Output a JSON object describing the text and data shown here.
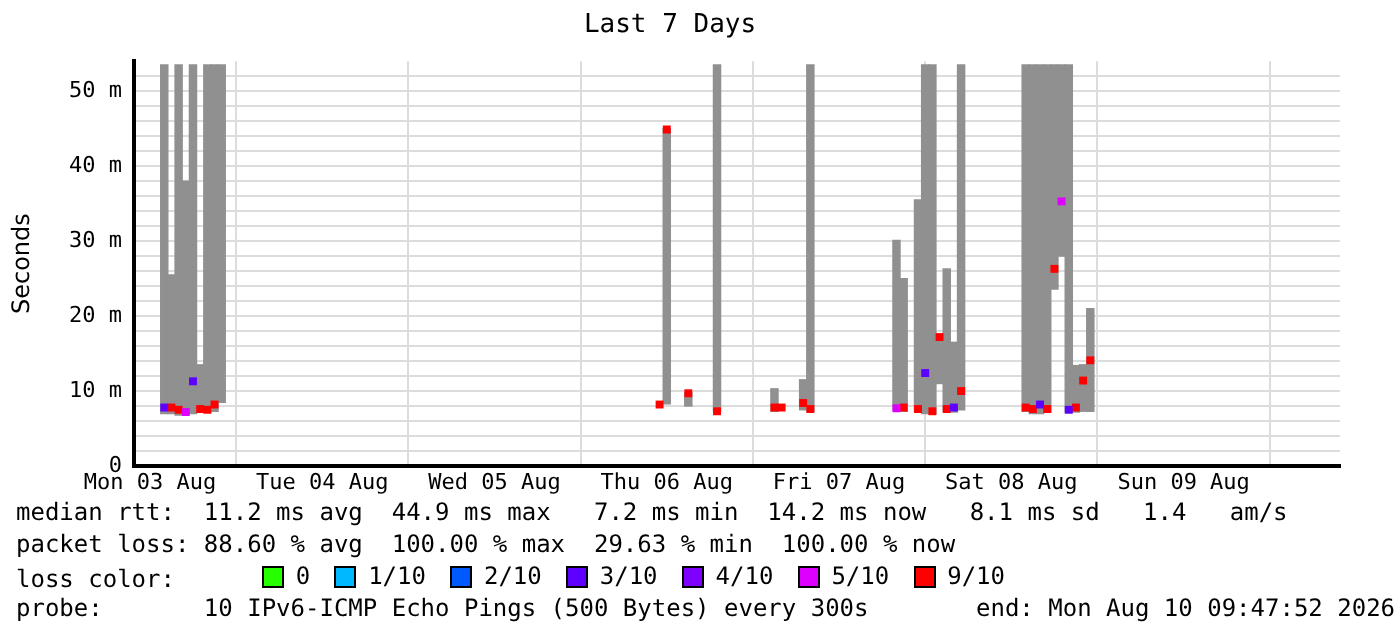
{
  "chart_data": {
    "type": "bar",
    "title": "Last 7 Days",
    "ylabel": "Seconds",
    "legend_title": "loss color:",
    "legend": "bottom",
    "marker": "square",
    "grid": true,
    "xlim": [
      "2026-08-03T09:47",
      "2026-08-10T09:47"
    ],
    "xticks": [
      {
        "value": "2026-08-03T12:00",
        "label": "Mon 03 Aug"
      },
      {
        "value": "2026-08-04T12:00",
        "label": "Tue 04 Aug"
      },
      {
        "value": "2026-08-05T12:00",
        "label": "Wed 05 Aug"
      },
      {
        "value": "2026-08-06T12:00",
        "label": "Thu 06 Aug"
      },
      {
        "value": "2026-08-07T12:00",
        "label": "Fri 07 Aug"
      },
      {
        "value": "2026-08-08T12:00",
        "label": "Sat 08 Aug"
      },
      {
        "value": "2026-08-09T12:00",
        "label": "Sun 09 Aug"
      }
    ],
    "ylim": [
      0,
      54
    ],
    "yticks": [
      0,
      {
        "value": 2,
        "label": null
      },
      {
        "value": 4,
        "label": null
      },
      {
        "value": 6,
        "label": null
      },
      {
        "value": 8,
        "label": null
      },
      {
        "value": 10,
        "label": "10 m"
      },
      {
        "value": 12,
        "label": null
      },
      {
        "value": 14,
        "label": null
      },
      {
        "value": 16,
        "label": null
      },
      {
        "value": 18,
        "label": null
      },
      {
        "value": 20,
        "label": "20 m"
      },
      {
        "value": 22,
        "label": null
      },
      {
        "value": 24,
        "label": null
      },
      {
        "value": 26,
        "label": null
      },
      {
        "value": 28,
        "label": null
      },
      {
        "value": 30,
        "label": "30 m"
      },
      {
        "value": 32,
        "label": null
      },
      {
        "value": 34,
        "label": null
      },
      {
        "value": 36,
        "label": null
      },
      {
        "value": 38,
        "label": null
      },
      {
        "value": 40,
        "label": "40 m"
      },
      {
        "value": 42,
        "label": null
      },
      {
        "value": 44,
        "label": null
      },
      {
        "value": 46,
        "label": null
      },
      {
        "value": 48,
        "label": null
      },
      {
        "value": 50,
        "label": "50 m"
      },
      {
        "value": 52,
        "label": null
      }
    ],
    "x": [
      "2026-08-03T14:00",
      "2026-08-03T15:00",
      "2026-08-03T16:00",
      "2026-08-03T17:00",
      "2026-08-03T18:00",
      "2026-08-03T19:00",
      "2026-08-03T20:00",
      "2026-08-03T21:00",
      "2026-08-03T22:00",
      "2026-08-04T00:00",
      "2026-08-06T11:00",
      "2026-08-06T12:00",
      "2026-08-06T14:00",
      "2026-08-06T15:00",
      "2026-08-06T17:00",
      "2026-08-06T19:00",
      "2026-08-06T21:00",
      "2026-08-07T03:00",
      "2026-08-07T04:00",
      "2026-08-07T05:00",
      "2026-08-07T07:00",
      "2026-08-07T08:00",
      "2026-08-07T10:00",
      "2026-08-07T20:00",
      "2026-08-07T21:00",
      "2026-08-07T22:00",
      "2026-08-07T23:00",
      "2026-08-08T00:00",
      "2026-08-08T01:00",
      "2026-08-08T02:00",
      "2026-08-08T03:00",
      "2026-08-08T04:00",
      "2026-08-08T05:00",
      "2026-08-08T07:00",
      "2026-08-08T14:00",
      "2026-08-08T15:00",
      "2026-08-08T16:00",
      "2026-08-08T17:00",
      "2026-08-08T18:00",
      "2026-08-08T19:00",
      "2026-08-08T20:00",
      "2026-08-08T21:00",
      "2026-08-08T22:00",
      "2026-08-08T23:00"
    ],
    "series": [
      {
        "color": "#909090",
        "base": [
          7.0,
          7.0,
          6.8,
          7.0,
          7.0,
          7.2,
          7.2,
          7.3,
          8.5,
          null,
          null,
          8.3,
          null,
          8.0,
          null,
          7.3,
          null,
          7.3,
          null,
          null,
          7.5,
          7.3,
          null,
          7.5,
          7.3,
          null,
          7.3,
          7.0,
          7.0,
          11.0,
          7.3,
          7.2,
          7.5,
          null,
          7.3,
          7.0,
          7.0,
          7.2,
          23.6,
          28.0,
          7.2,
          7.2,
          7.3,
          7.3
        ],
        "values": [
          46.5,
          18.5,
          46.7,
          31.0,
          46.5,
          6.3,
          46.3,
          46.2,
          45.0,
          null,
          null,
          36.7,
          null,
          1.8,
          null,
          46.2,
          null,
          3.0,
          null,
          null,
          4.0,
          46.2,
          null,
          22.6,
          17.7,
          null,
          28.2,
          46.5,
          46.5,
          6.4,
          19.0,
          9.3,
          46.0,
          null,
          46.2,
          46.5,
          46.5,
          46.3,
          29.9,
          25.5,
          46.3,
          6.2,
          6.2,
          13.7
        ]
      },
      {
        "type": "scatter",
        "name": "0",
        "color": "#26ff00",
        "values": [
          null,
          null,
          null,
          null,
          null,
          null,
          null,
          null,
          null,
          null,
          null,
          null,
          null,
          null,
          null,
          null,
          null,
          null,
          null,
          null,
          null,
          null,
          null,
          null,
          null,
          null,
          null,
          null,
          null,
          null,
          null,
          null,
          null,
          null,
          null,
          null,
          null,
          null,
          null,
          null,
          null,
          null,
          null,
          null
        ]
      },
      {
        "type": "scatter",
        "name": "1/10",
        "color": "#00b8ff",
        "values": [
          null,
          null,
          null,
          null,
          null,
          null,
          null,
          null,
          null,
          null,
          null,
          null,
          null,
          null,
          null,
          null,
          null,
          null,
          null,
          null,
          null,
          null,
          null,
          null,
          null,
          null,
          null,
          null,
          null,
          null,
          null,
          null,
          null,
          null,
          null,
          null,
          null,
          null,
          null,
          null,
          null,
          null,
          null,
          null
        ]
      },
      {
        "type": "scatter",
        "name": "2/10",
        "color": "#0059ff",
        "values": [
          null,
          null,
          null,
          null,
          null,
          null,
          null,
          null,
          null,
          null,
          null,
          null,
          null,
          null,
          null,
          null,
          null,
          null,
          null,
          null,
          null,
          null,
          null,
          null,
          null,
          null,
          null,
          null,
          null,
          null,
          null,
          null,
          null,
          null,
          null,
          null,
          null,
          null,
          null,
          null,
          null,
          null,
          null,
          null
        ]
      },
      {
        "type": "scatter",
        "name": "3/10",
        "color": "#5e00ff",
        "values": [
          7.8,
          null,
          null,
          null,
          11.3,
          null,
          null,
          null,
          null,
          null,
          null,
          null,
          null,
          null,
          null,
          null,
          null,
          null,
          null,
          null,
          null,
          null,
          null,
          null,
          null,
          null,
          null,
          12.4,
          null,
          null,
          null,
          7.8,
          null,
          null,
          null,
          null,
          8.2,
          null,
          null,
          null,
          7.5,
          null,
          null,
          null
        ]
      },
      {
        "type": "scatter",
        "name": "4/10",
        "color": "#7e00ff",
        "values": [
          null,
          null,
          null,
          null,
          null,
          null,
          null,
          null,
          null,
          null,
          null,
          null,
          null,
          null,
          null,
          null,
          null,
          null,
          null,
          null,
          null,
          null,
          null,
          null,
          null,
          null,
          null,
          null,
          null,
          null,
          null,
          null,
          null,
          null,
          null,
          null,
          null,
          null,
          null,
          null,
          null,
          null,
          null,
          null
        ]
      },
      {
        "type": "scatter",
        "name": "5/10",
        "color": "#dd00ff",
        "values": [
          null,
          null,
          null,
          7.2,
          null,
          null,
          null,
          null,
          null,
          null,
          null,
          null,
          null,
          null,
          null,
          null,
          null,
          null,
          null,
          null,
          null,
          null,
          null,
          7.7,
          null,
          null,
          null,
          null,
          null,
          null,
          null,
          null,
          null,
          null,
          null,
          null,
          null,
          null,
          null,
          35.3,
          null,
          null,
          null,
          null
        ]
      },
      {
        "type": "scatter",
        "name": "9/10",
        "color": "#ff0000",
        "values": [
          null,
          7.8,
          7.5,
          null,
          null,
          7.6,
          7.5,
          8.2,
          null,
          null,
          8.2,
          44.9,
          null,
          9.7,
          null,
          7.3,
          null,
          7.8,
          7.8,
          null,
          8.4,
          7.6,
          null,
          null,
          7.8,
          null,
          7.6,
          null,
          7.3,
          17.2,
          7.6,
          null,
          10.0,
          null,
          7.8,
          7.6,
          null,
          7.6,
          26.3,
          null,
          null,
          7.8,
          11.4,
          14.1
        ]
      }
    ],
    "annotations": [
      "median rtt:  11.2 ms avg  44.9 ms max   7.2 ms min  14.2 ms now   8.1 ms sd   1.4   am/s",
      "packet loss: 88.60 % avg  100.00 % max  29.63 % min  100.00 % now",
      "probe:       10 IPv6-ICMP Echo Pings (500 Bytes) every 300s",
      "end: Mon Aug 10 09:47:52 2026"
    ]
  }
}
